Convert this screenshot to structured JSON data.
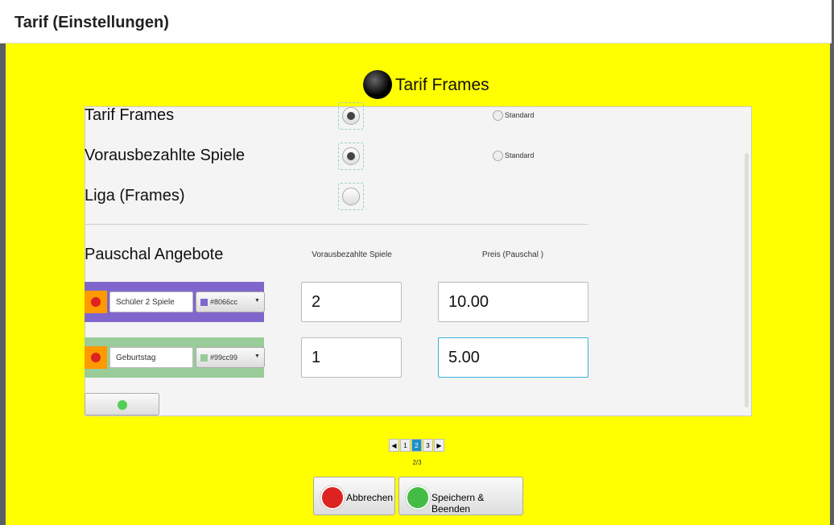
{
  "dialog": {
    "title": "Tarif (Einstellungen)"
  },
  "header": {
    "title": "Tarif Frames"
  },
  "tariffs": [
    {
      "label": "Tarif Frames",
      "selected": true,
      "option": "Standard"
    },
    {
      "label": "Vorausbezahlte Spiele",
      "selected": true,
      "option": "Standard"
    },
    {
      "label": "Liga (Frames)",
      "selected": false
    }
  ],
  "offers": {
    "title": "Pauschal Angebote",
    "columns": [
      "Vorausbezahlte Spiele",
      "Preis (Pauschal )"
    ],
    "rows": [
      {
        "name": "Schüler 2 Spiele",
        "color": "#8066cc",
        "games": "2",
        "price": "10.00"
      },
      {
        "name": "Geburtstag",
        "color": "#99cc99",
        "games": "1",
        "price": "5.00"
      }
    ]
  },
  "pagination": {
    "pages": [
      "1",
      "2",
      "3"
    ],
    "indicator": "2/3"
  },
  "buttons": {
    "cancel": "Abbrechen",
    "save": "Speichern & Beenden"
  }
}
